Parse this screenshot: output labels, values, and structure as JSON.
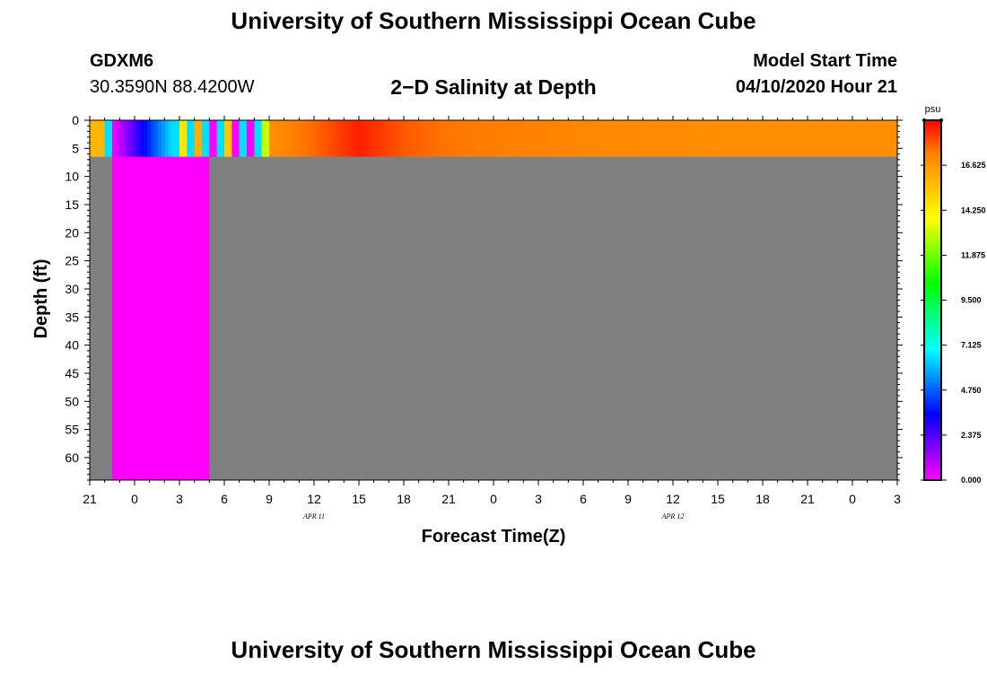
{
  "header": {
    "title": "University of Southern Mississippi Ocean Cube",
    "station_id": "GDXM6",
    "coords": "30.3590N 88.4200W",
    "plot_title": "2−D Salinity at Depth",
    "start_label": "Model Start Time",
    "start_value": "04/10/2020 Hour 21"
  },
  "footer": {
    "title": "University of Southern Mississippi Ocean Cube"
  },
  "chart_data": {
    "type": "heatmap",
    "xlabel": "Forecast Time(Z)",
    "ylabel": "Depth (ft)",
    "x_range_hours": [
      0,
      54
    ],
    "x_tick_labels": [
      "21",
      "0",
      "3",
      "6",
      "9",
      "12",
      "15",
      "18",
      "21",
      "0",
      "3",
      "6",
      "9",
      "12",
      "15",
      "18",
      "21",
      "0",
      "3"
    ],
    "date_labels": [
      {
        "text": "APR 11",
        "hour": 15
      },
      {
        "text": "APR 12",
        "hour": 39
      }
    ],
    "y_range": [
      0,
      64
    ],
    "y_ticks": [
      0,
      5,
      10,
      15,
      20,
      25,
      30,
      35,
      40,
      45,
      50,
      55,
      60
    ],
    "colorbar": {
      "unit": "psu",
      "min": 0,
      "max": 19,
      "labels": [
        "0.000",
        "2.375",
        "4.750",
        "7.125",
        "9.500",
        "11.875",
        "14.250",
        "16.625"
      ],
      "colors": [
        "#ff00ff",
        "#8000ff",
        "#0000ff",
        "#0080ff",
        "#00ffff",
        "#00ff80",
        "#00ff00",
        "#80ff00",
        "#ffff00",
        "#ffbf00",
        "#ff8000",
        "#ff0000"
      ]
    },
    "no_data_color": "#808080",
    "surface_layer_depth_ft": 6.5,
    "surface_salinity_psu": [
      {
        "hour": 0,
        "value": 15.8
      },
      {
        "hour": 1,
        "value": 6.5
      },
      {
        "hour": 1.5,
        "value": 0
      },
      {
        "hour": 5.5,
        "value": 6.5
      },
      {
        "hour": 6,
        "value": 14.5
      },
      {
        "hour": 6.5,
        "value": 6.5
      },
      {
        "hour": 7,
        "value": 16.0
      },
      {
        "hour": 7.5,
        "value": 6.5
      },
      {
        "hour": 8,
        "value": 0
      },
      {
        "hour": 8.5,
        "value": 6.5
      },
      {
        "hour": 9,
        "value": 15.3
      },
      {
        "hour": 9.5,
        "value": 0
      },
      {
        "hour": 10,
        "value": 6.5
      },
      {
        "hour": 10.5,
        "value": 0
      },
      {
        "hour": 11,
        "value": 6.5
      },
      {
        "hour": 11.5,
        "value": 13.0
      },
      {
        "hour": 12,
        "value": 16.8
      },
      {
        "hour": 15,
        "value": 17.6
      },
      {
        "hour": 18,
        "value": 18.6
      },
      {
        "hour": 21,
        "value": 17.8
      },
      {
        "hour": 24,
        "value": 17.4
      },
      {
        "hour": 30,
        "value": 17.2
      },
      {
        "hour": 36,
        "value": 17.0
      },
      {
        "hour": 42,
        "value": 16.9
      },
      {
        "hour": 54,
        "value": 16.9
      }
    ],
    "missing_column_hours": [
      1.5,
      8
    ]
  }
}
